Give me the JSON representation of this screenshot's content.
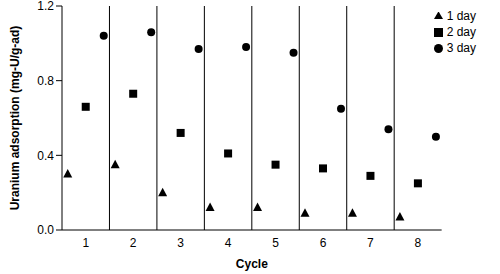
{
  "chart_data": {
    "type": "scatter",
    "x_label": "Cycle",
    "y_label": "Uranium adsorption (mg-U/g-ad)",
    "x": [
      1,
      2,
      3,
      4,
      5,
      6,
      7,
      8
    ],
    "xlim": [
      0.5,
      8.5
    ],
    "xticks": [
      1,
      2,
      3,
      4,
      5,
      6,
      7,
      8
    ],
    "ylim": [
      0,
      1.2
    ],
    "yticks": [
      {
        "value": 0,
        "label": "0.0"
      },
      0.4,
      0.8,
      1.2
    ],
    "grid": false,
    "legend": "upper right",
    "series": [
      {
        "name": "1 day",
        "color": "#000000",
        "marker": "triangle",
        "values": [
          0.3,
          0.35,
          0.2,
          0.12,
          0.12,
          0.09,
          0.09,
          0.07
        ]
      },
      {
        "name": "2 day",
        "color": "#000000",
        "marker": "square",
        "values": [
          0.66,
          0.73,
          0.52,
          0.41,
          0.35,
          0.33,
          0.29,
          0.25
        ]
      },
      {
        "name": "3 day",
        "color": "#000000",
        "marker": "circle",
        "values": [
          1.04,
          1.06,
          0.97,
          0.98,
          0.95,
          0.65,
          0.54,
          0.5
        ]
      }
    ]
  }
}
